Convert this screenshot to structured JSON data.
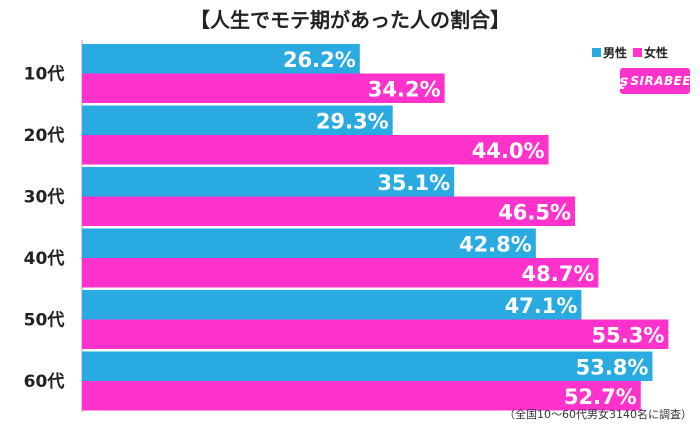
{
  "chart_data": {
    "type": "bar",
    "title": "【人生でモテ期があった人の割合】",
    "categories": [
      "10代",
      "20代",
      "30代",
      "40代",
      "50代",
      "60代"
    ],
    "series": [
      {
        "name": "男性",
        "values": [
          26.2,
          29.3,
          35.1,
          42.8,
          47.1,
          53.8
        ],
        "color": "#29abe2"
      },
      {
        "name": "女性",
        "values": [
          34.2,
          44.0,
          46.5,
          48.7,
          55.3,
          52.7
        ],
        "color": "#ff33cc"
      }
    ],
    "value_labels": [
      [
        "26.2%",
        "29.3%",
        "35.1%",
        "42.8%",
        "47.1%",
        "53.8%"
      ],
      [
        "34.2%",
        "44.0%",
        "46.5%",
        "48.7%",
        "55.3%",
        "52.7%"
      ]
    ],
    "orientation": "horizontal",
    "xlim": [
      0,
      58
    ],
    "grid": false,
    "legend_position": "top-right"
  },
  "brand": {
    "logo_text": "SIRABEE",
    "logo_mark": "ʂ"
  },
  "footnote": "（全国10～60代男女3140名に調査）",
  "colors": {
    "male": "#29abe2",
    "female": "#ff33cc",
    "axis": "#aaaaaa"
  }
}
